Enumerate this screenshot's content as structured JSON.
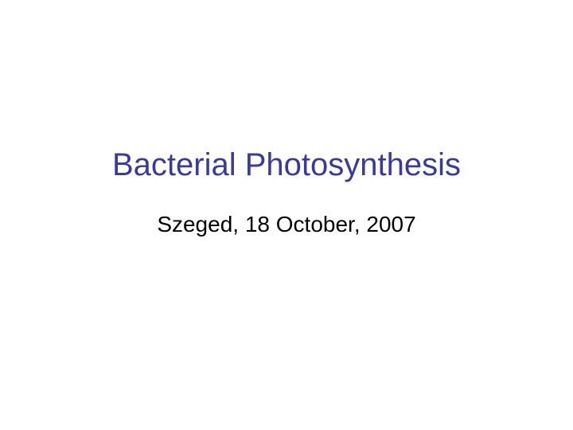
{
  "slide": {
    "title": "Bacterial Photosynthesis",
    "subtitle": "Szeged, 18 October, 2007",
    "title_color": "#3a3a9e",
    "subtitle_color": "#000000",
    "background_color": "#ffffff",
    "title_fontsize": 40,
    "subtitle_fontsize": 28
  }
}
